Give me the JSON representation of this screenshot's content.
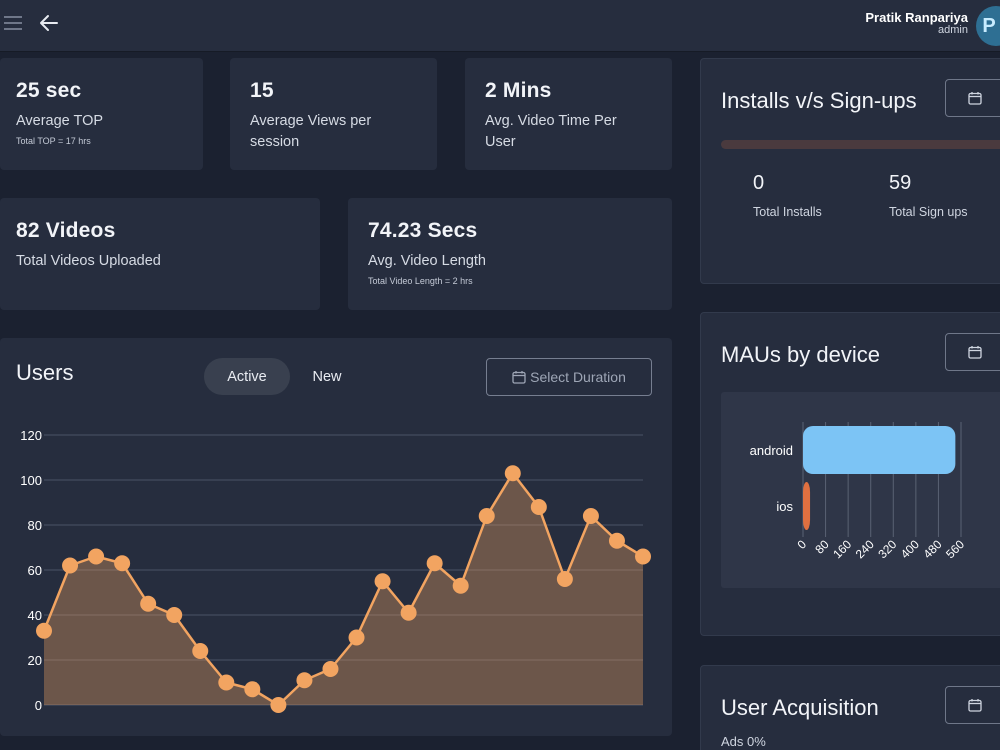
{
  "header": {
    "user_name": "Pratik Ranpariya",
    "user_role": "admin",
    "avatar_initial": "P"
  },
  "stats": {
    "top": {
      "value": "25 sec",
      "label": "Average TOP",
      "sub": "Total TOP = 17 hrs"
    },
    "views": {
      "value": "15",
      "label_line1": "Average Views per",
      "label_line2": "session"
    },
    "video_time": {
      "value": "2 Mins",
      "label_line1": "Avg. Video Time Per",
      "label_line2": "User"
    },
    "videos": {
      "value": "82 Videos",
      "label": "Total Videos Uploaded"
    },
    "video_length": {
      "value": "74.23 Secs",
      "label": "Avg. Video Length",
      "sub": "Total Video Length = 2 hrs"
    }
  },
  "users_panel": {
    "title": "Users",
    "tabs": [
      {
        "label": "Active",
        "selected": true
      },
      {
        "label": "New",
        "selected": false
      }
    ],
    "duration_button": "Select Duration"
  },
  "installs_panel": {
    "title": "Installs v/s Sign-ups",
    "installs_value": "0",
    "installs_label": "Total Installs",
    "signups_value": "59",
    "signups_label": "Total Sign ups"
  },
  "mau_panel": {
    "title": "MAUs by device"
  },
  "acquisition_panel": {
    "title": "User Acquisition",
    "ads_label": "Ads 0%"
  },
  "colors": {
    "background": "#1b2130",
    "card": "#262d3e",
    "line": "#f2a461",
    "android_bar": "#7cc4f5",
    "ios_bar": "#e07040"
  },
  "chart_data": [
    {
      "type": "area",
      "y": [
        33,
        62,
        66,
        63,
        45,
        40,
        24,
        10,
        7,
        0,
        11,
        16,
        30,
        55,
        41,
        63,
        53,
        84,
        103,
        88,
        56,
        84,
        73,
        66
      ],
      "yticks": [
        0,
        20,
        40,
        60,
        80,
        100,
        120
      ],
      "ylim": [
        0,
        120
      ],
      "grid": true
    },
    {
      "type": "bar",
      "orientation": "horizontal",
      "categories": [
        "android",
        "ios"
      ],
      "values": [
        540,
        25
      ],
      "xticks": [
        0,
        80,
        160,
        240,
        320,
        400,
        480,
        560
      ],
      "xlim": [
        0,
        560
      ],
      "grid": true
    }
  ]
}
